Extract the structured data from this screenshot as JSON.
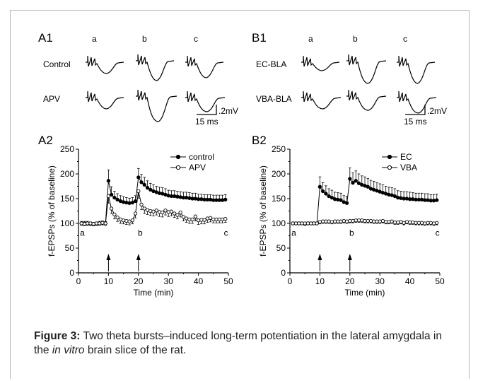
{
  "figure": {
    "panel_labels": [
      "A1",
      "B1",
      "A2",
      "B2"
    ],
    "trace_columns": [
      "a",
      "b",
      "c"
    ],
    "A1": {
      "row_labels": [
        "Control",
        "APV"
      ]
    },
    "B1": {
      "row_labels": [
        "EC-BLA",
        "VBA-BLA"
      ]
    },
    "scale_bar": {
      "amplitude": ".2mV",
      "time": "15 ms"
    }
  },
  "caption": {
    "label": "Figure 3:",
    "text_before": " Two theta bursts–induced long-term potentiation in the lateral amygdala in the ",
    "italic": "in vitro",
    "text_after": " brain slice of the rat."
  },
  "chart_data": [
    {
      "panel": "A2",
      "type": "line",
      "xlabel": "Time (min)",
      "ylabel": "f-EPSPs (% of baseline)",
      "xlim": [
        0,
        50
      ],
      "ylim": [
        0,
        250
      ],
      "xticks": [
        0,
        10,
        20,
        30,
        40,
        50
      ],
      "yticks": [
        0,
        50,
        100,
        150,
        200,
        250
      ],
      "legend_position": "top-right",
      "annotations": [
        {
          "text": "a",
          "x": 0.5,
          "y": 75
        },
        {
          "text": "b",
          "x": 19.8,
          "y": 75
        },
        {
          "text": "c",
          "x": 48.5,
          "y": 75
        }
      ],
      "arrows_at": [
        10,
        20
      ],
      "series": [
        {
          "name": "control",
          "marker": "filled",
          "x": [
            1,
            2,
            3,
            4,
            5,
            6,
            7,
            8,
            9,
            10,
            11,
            12,
            13,
            14,
            15,
            16,
            17,
            18,
            19,
            20,
            21,
            22,
            23,
            24,
            25,
            26,
            27,
            28,
            29,
            30,
            31,
            32,
            33,
            34,
            35,
            36,
            37,
            38,
            39,
            40,
            41,
            42,
            43,
            44,
            45,
            46,
            47,
            48,
            49
          ],
          "y": [
            100,
            100,
            100,
            99,
            98,
            99,
            100,
            101,
            100,
            186,
            158,
            152,
            148,
            145,
            143,
            142,
            141,
            142,
            145,
            193,
            183,
            178,
            172,
            168,
            165,
            163,
            161,
            160,
            158,
            156,
            155,
            155,
            154,
            153,
            152,
            152,
            151,
            150,
            150,
            149,
            149,
            148,
            148,
            148,
            147,
            147,
            147,
            147,
            148
          ],
          "err": [
            4,
            4,
            4,
            4,
            4,
            4,
            4,
            4,
            4,
            22,
            16,
            13,
            12,
            11,
            11,
            10,
            10,
            10,
            11,
            18,
            16,
            15,
            14,
            13,
            13,
            12,
            12,
            12,
            12,
            11,
            11,
            11,
            11,
            11,
            11,
            11,
            11,
            11,
            11,
            10,
            10,
            10,
            10,
            10,
            10,
            10,
            10,
            10,
            10
          ]
        },
        {
          "name": "APV",
          "marker": "open",
          "x": [
            1,
            2,
            3,
            4,
            5,
            6,
            7,
            8,
            9,
            10,
            11,
            12,
            13,
            14,
            15,
            16,
            17,
            18,
            19,
            20,
            21,
            22,
            23,
            24,
            25,
            26,
            27,
            28,
            29,
            30,
            31,
            32,
            33,
            34,
            35,
            36,
            37,
            38,
            39,
            40,
            41,
            42,
            43,
            44,
            45,
            46,
            47,
            48,
            49
          ],
          "y": [
            100,
            99,
            100,
            100,
            99,
            100,
            100,
            101,
            100,
            155,
            130,
            118,
            112,
            108,
            106,
            105,
            104,
            106,
            120,
            165,
            138,
            130,
            127,
            125,
            124,
            126,
            123,
            122,
            126,
            123,
            124,
            120,
            117,
            122,
            113,
            110,
            108,
            108,
            114,
            106,
            107,
            107,
            110,
            111,
            108,
            108,
            108,
            108,
            109
          ],
          "err": [
            4,
            4,
            4,
            4,
            4,
            4,
            4,
            4,
            4,
            14,
            10,
            9,
            8,
            8,
            7,
            7,
            7,
            7,
            9,
            14,
            10,
            10,
            9,
            9,
            9,
            9,
            9,
            9,
            9,
            9,
            9,
            8,
            8,
            9,
            8,
            8,
            8,
            8,
            9,
            8,
            8,
            8,
            8,
            8,
            7,
            7,
            7,
            7,
            7
          ]
        }
      ]
    },
    {
      "panel": "B2",
      "type": "line",
      "xlabel": "Time (min)",
      "ylabel": "f-EPSPs (% of baseline)",
      "xlim": [
        0,
        50
      ],
      "ylim": [
        0,
        250
      ],
      "xticks": [
        0,
        10,
        20,
        30,
        40,
        50
      ],
      "yticks": [
        0,
        50,
        100,
        150,
        200,
        250
      ],
      "legend_position": "top-right",
      "annotations": [
        {
          "text": "a",
          "x": 0.5,
          "y": 75
        },
        {
          "text": "b",
          "x": 19.8,
          "y": 75
        },
        {
          "text": "c",
          "x": 48.5,
          "y": 75
        }
      ],
      "arrows_at": [
        10,
        20
      ],
      "series": [
        {
          "name": "EC",
          "marker": "filled",
          "x": [
            1,
            2,
            3,
            4,
            5,
            6,
            7,
            8,
            9,
            10,
            11,
            12,
            13,
            14,
            15,
            16,
            17,
            18,
            19,
            20,
            21,
            22,
            23,
            24,
            25,
            26,
            27,
            28,
            29,
            30,
            31,
            32,
            33,
            34,
            35,
            36,
            37,
            38,
            39,
            40,
            41,
            42,
            43,
            44,
            45,
            46,
            47,
            48,
            49
          ],
          "y": [
            100,
            100,
            100,
            100,
            99,
            100,
            100,
            100,
            100,
            174,
            165,
            160,
            155,
            152,
            149,
            148,
            147,
            143,
            141,
            190,
            182,
            186,
            181,
            178,
            176,
            174,
            170,
            168,
            166,
            164,
            162,
            160,
            158,
            157,
            155,
            152,
            151,
            150,
            150,
            149,
            149,
            148,
            148,
            148,
            147,
            147,
            146,
            146,
            147
          ],
          "err": [
            3,
            3,
            3,
            3,
            3,
            3,
            3,
            3,
            3,
            20,
            17,
            16,
            15,
            15,
            14,
            14,
            14,
            13,
            13,
            22,
            20,
            20,
            19,
            18,
            18,
            17,
            17,
            17,
            16,
            16,
            16,
            15,
            15,
            15,
            15,
            14,
            14,
            14,
            14,
            14,
            13,
            13,
            13,
            13,
            13,
            13,
            12,
            12,
            12
          ]
        },
        {
          "name": "VBA",
          "marker": "open",
          "x": [
            1,
            2,
            3,
            4,
            5,
            6,
            7,
            8,
            9,
            10,
            11,
            12,
            13,
            14,
            15,
            16,
            17,
            18,
            19,
            20,
            21,
            22,
            23,
            24,
            25,
            26,
            27,
            28,
            29,
            30,
            31,
            32,
            33,
            34,
            35,
            36,
            37,
            38,
            39,
            40,
            41,
            42,
            43,
            44,
            45,
            46,
            47,
            48,
            49
          ],
          "y": [
            100,
            100,
            100,
            100,
            100,
            100,
            100,
            100,
            100,
            103,
            104,
            104,
            104,
            103,
            104,
            104,
            104,
            105,
            104,
            105,
            105,
            106,
            106,
            106,
            105,
            105,
            105,
            104,
            104,
            104,
            105,
            103,
            103,
            104,
            102,
            102,
            103,
            101,
            103,
            102,
            102,
            101,
            101,
            101,
            100,
            101,
            101,
            100,
            101
          ],
          "err": [
            3,
            3,
            3,
            3,
            3,
            3,
            3,
            3,
            3,
            4,
            4,
            4,
            4,
            4,
            4,
            4,
            4,
            4,
            4,
            4,
            4,
            4,
            4,
            4,
            4,
            4,
            4,
            4,
            4,
            4,
            4,
            4,
            4,
            4,
            4,
            4,
            4,
            4,
            4,
            4,
            4,
            4,
            4,
            4,
            4,
            4,
            4,
            4,
            4
          ]
        }
      ]
    }
  ]
}
